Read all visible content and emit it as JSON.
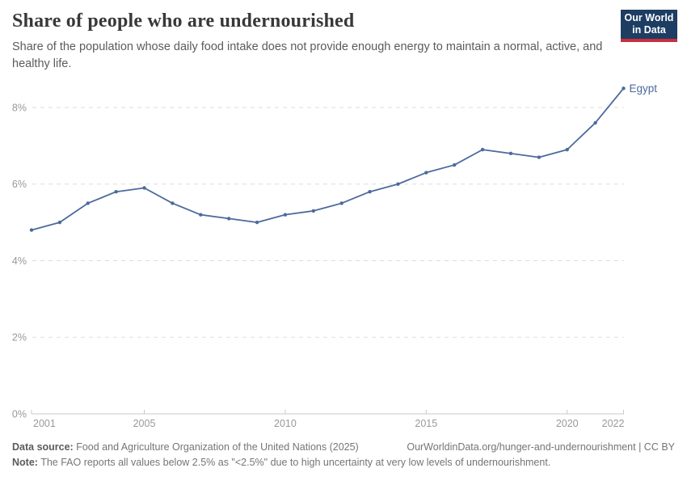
{
  "header": {
    "title": "Share of people who are undernourished",
    "subtitle": "Share of the population whose daily food intake does not provide enough energy to maintain a normal, active, and healthy life.",
    "logo": {
      "line1": "Our World",
      "line2": "in Data"
    }
  },
  "chart_data": {
    "type": "line",
    "title": "Share of people who are undernourished",
    "x": [
      2001,
      2002,
      2003,
      2004,
      2005,
      2006,
      2007,
      2008,
      2009,
      2010,
      2011,
      2012,
      2013,
      2014,
      2015,
      2016,
      2017,
      2018,
      2019,
      2020,
      2021,
      2022
    ],
    "series": [
      {
        "name": "Egypt",
        "values": [
          4.8,
          5.0,
          5.5,
          5.8,
          5.9,
          5.5,
          5.2,
          5.1,
          5.0,
          5.2,
          5.3,
          5.5,
          5.8,
          6.0,
          6.3,
          6.5,
          6.9,
          6.8,
          6.7,
          6.9,
          7.6,
          8.5
        ]
      }
    ],
    "x_ticks": [
      2001,
      2005,
      2010,
      2015,
      2020,
      2022
    ],
    "y_ticks": [
      0,
      2,
      4,
      6,
      8
    ],
    "y_tick_suffix": "%",
    "ylim": [
      0,
      8.8
    ],
    "grid": "dashed horizontal",
    "legend_position": "end-of-line label",
    "colors": {
      "line": "#4C6A9C",
      "grid": "#dddddd",
      "axis": "#c8c8c8",
      "tick_label": "#999999"
    }
  },
  "footer": {
    "datasource_label": "Data source:",
    "datasource_text": " Food and Agriculture Organization of the United Nations (2025)",
    "link": "OurWorldinData.org/hunger-and-undernourishment | CC BY",
    "note_label": "Note:",
    "note_text": " The FAO reports all values below 2.5% as \"<2.5%\" due to high uncertainty at very low levels of undernourishment."
  }
}
